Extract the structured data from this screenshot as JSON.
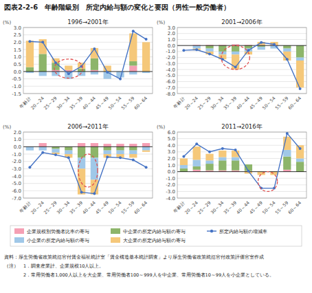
{
  "title": "図表2-2-6　年齢階級別　所定内給与額の変化と要因（男性一般労働者）",
  "footnotes": [
    "資料：厚生労働省政策統括官付賃金福祉統計室「賃金構造基本統計調査」より厚生労働省政策統括官付政策評価官室作成",
    "（注）　1．調査産業計、企業規模10人以上。",
    "　　　　2．常用労働者1,000人以上を大企業、常用労働者100～999人を中企業、常用労働者10～99人を小企業としている。"
  ],
  "chart_data": [
    {
      "type": "bar",
      "stacked": true,
      "grid": true,
      "title": "1996→2001年",
      "ylabel": "(%)",
      "categories": [
        "年齢計",
        "20～24",
        "25～29",
        "30～34",
        "35～39",
        "40～44",
        "45～49",
        "50～54",
        "55～59",
        "60～64"
      ],
      "ylim": [
        -1.5,
        3.0
      ],
      "yticks": [
        -1.5,
        {
          "value": -1.0,
          "label": "-1.0"
        },
        -0.5,
        {
          "value": 0.0,
          "label": "0.0"
        },
        0.5,
        {
          "value": 1.0,
          "label": "1.0"
        },
        1.5,
        {
          "value": 2.0,
          "label": "2.0"
        },
        2.5,
        {
          "value": 3.0,
          "label": "3.0"
        }
      ],
      "series": [
        {
          "name": "企業規模別労働者比率の寄与",
          "type": "bar",
          "color": "#f5a0b4",
          "values": [
            0.0,
            0.0,
            0.1,
            0.1,
            0.0,
            0.1,
            0.0,
            0.0,
            0.4,
            0.0
          ]
        },
        {
          "name": "中企業の所定内給与額の寄与",
          "type": "bar",
          "color": "#8db56a",
          "values": [
            0.3,
            1.2,
            0.5,
            0.0,
            0.2,
            0.8,
            0.0,
            0.0,
            0.3,
            0.0
          ]
        },
        {
          "name": "所定内給与額の増減率",
          "type": "line",
          "marker": "circle",
          "color": "#4472c4",
          "values": [
            2.05,
            2.0,
            0.6,
            -0.15,
            0.35,
            1.55,
            -0.05,
            -0.5,
            2.75,
            2.2
          ]
        },
        {
          "name": "小企業の所定内給与額の寄与",
          "type": "bar",
          "color": "#a0c8e8",
          "values": [
            -0.1,
            -0.3,
            -0.3,
            -0.5,
            -0.3,
            -0.2,
            -0.5,
            -0.4,
            -0.2,
            -0.1
          ]
        },
        {
          "name": "大企業の所定内給与額の寄与",
          "type": "bar",
          "color": "#f5c87a",
          "values": [
            1.8,
            1.0,
            0.3,
            0.3,
            0.4,
            0.7,
            0.4,
            0.0,
            1.9,
            2.0
          ]
        }
      ],
      "annotations": [
        {
          "type": "ellipse",
          "line_style": "dashed",
          "color": "#e05050",
          "x": 3.0,
          "y": -0.45,
          "width": 2.2,
          "height": 1.3
        }
      ]
    },
    {
      "type": "bar",
      "stacked": true,
      "grid": true,
      "title": "2001→2006年",
      "ylabel": "(%)",
      "categories": [
        "年齢計",
        "20～24",
        "25～29",
        "30～34",
        "35～39",
        "40～44",
        "45～49",
        "50～54",
        "55～59",
        "60～64"
      ],
      "ylim": [
        -8.0,
        3.0
      ],
      "yticks": [
        {
          "value": -8.0,
          "label": "-8.0"
        },
        {
          "value": -7.0,
          "label": "-7.0"
        },
        {
          "value": -6.0,
          "label": "-6.0"
        },
        {
          "value": -5.0,
          "label": "-5.0"
        },
        {
          "value": -4.0,
          "label": "-4.0"
        },
        {
          "value": -3.0,
          "label": "-3.0"
        },
        {
          "value": -2.0,
          "label": "-2.0"
        },
        {
          "value": -1.0,
          "label": "-1.0"
        },
        {
          "value": 0.0,
          "label": "0.0"
        },
        {
          "value": 1.0,
          "label": "1.0"
        },
        {
          "value": 2.0,
          "label": "2.0"
        },
        {
          "value": 3.0,
          "label": "3.0"
        }
      ],
      "series": [
        {
          "name": "企業規模別労働者比率の寄与",
          "type": "bar",
          "color": "#f5a0b4",
          "values": [
            0.0,
            0.1,
            0.1,
            0.1,
            0.2,
            0.1,
            0.1,
            0.1,
            0.0,
            0.0
          ]
        },
        {
          "name": "中企業の所定内給与額の寄与",
          "type": "bar",
          "color": "#8db56a",
          "values": [
            0.0,
            0.0,
            -0.5,
            -1.0,
            -1.0,
            -0.5,
            -0.2,
            0.0,
            -0.5,
            -2.0
          ]
        },
        {
          "name": "所定内給与額の増減率",
          "type": "line",
          "marker": "circle",
          "color": "#4472c4",
          "values": [
            -0.8,
            -0.7,
            -1.4,
            -2.3,
            -3.6,
            -0.8,
            0.5,
            0.2,
            -2.3,
            -7.2
          ]
        },
        {
          "name": "小企業の所定内給与額の寄与",
          "type": "bar",
          "color": "#a0c8e8",
          "values": [
            0.0,
            -0.5,
            -0.5,
            -0.5,
            -0.5,
            -0.5,
            -0.5,
            -0.5,
            -0.5,
            -0.5
          ]
        },
        {
          "name": "大企業の所定内給与額の寄与",
          "type": "bar",
          "color": "#f5c87a",
          "values": [
            0.0,
            -0.3,
            -0.5,
            -0.8,
            -2.5,
            -0.5,
            0.5,
            0.5,
            -1.5,
            -4.5
          ]
        }
      ],
      "annotations": [
        {
          "type": "ellipse",
          "line_style": "dashed",
          "color": "#e05050",
          "x": 4.0,
          "y": -4.0,
          "width": 2.2,
          "height": 4.0
        }
      ]
    },
    {
      "type": "bar",
      "stacked": true,
      "grid": true,
      "title": "2006→2011年",
      "ylabel": "(%)",
      "categories": [
        "年齢計",
        "20～24",
        "25～29",
        "30～34",
        "35～39",
        "40～44",
        "45～49",
        "50～54",
        "55～59",
        "60～64"
      ],
      "ylim": [
        -7.0,
        2.0
      ],
      "yticks": [
        {
          "value": -7.0,
          "label": "-7.0"
        },
        {
          "value": -6.0,
          "label": "-6.0"
        },
        {
          "value": -5.0,
          "label": "-5.0"
        },
        {
          "value": -4.0,
          "label": "-4.0"
        },
        {
          "value": -3.0,
          "label": "-3.0"
        },
        {
          "value": -2.0,
          "label": "-2.0"
        },
        {
          "value": -1.0,
          "label": "-1.0"
        },
        {
          "value": 0.0,
          "label": "0.0"
        },
        {
          "value": 1.0,
          "label": "1.0"
        },
        {
          "value": 2.0,
          "label": "2.0"
        }
      ],
      "series": [
        {
          "name": "企業規模別労働者比率の寄与",
          "type": "bar",
          "color": "#f5a0b4",
          "values": [
            0.0,
            0.5,
            0.0,
            0.0,
            0.5,
            0.5,
            0.4,
            0.4,
            0.4,
            0.5
          ]
        },
        {
          "name": "中企業の所定内給与額の寄与",
          "type": "bar",
          "color": "#8db56a",
          "values": [
            0.0,
            0.0,
            -0.3,
            -0.5,
            -1.5,
            -1.5,
            -0.5,
            -0.5,
            -0.5,
            0.0
          ]
        },
        {
          "name": "所定内給与額の増減率",
          "type": "line",
          "marker": "circle",
          "color": "#4472c4",
          "values": [
            -2.8,
            -0.8,
            -1.1,
            -1.5,
            -6.2,
            -6.4,
            -1.4,
            -1.5,
            -1.8,
            -2.8
          ]
        },
        {
          "name": "小企業の所定内給与額の寄与",
          "type": "bar",
          "color": "#a0c8e8",
          "values": [
            -0.5,
            -0.5,
            -0.5,
            -0.5,
            -1.5,
            -3.0,
            -0.5,
            -0.5,
            -0.5,
            -0.5
          ]
        },
        {
          "name": "大企業の所定内給与額の寄与",
          "type": "bar",
          "color": "#f5c87a",
          "values": [
            0.0,
            0.0,
            -0.2,
            -0.5,
            -3.5,
            -2.0,
            -0.5,
            -0.5,
            -0.5,
            -0.2
          ]
        }
      ],
      "annotations": [
        {
          "type": "ellipse",
          "line_style": "dashed",
          "color": "#e05050",
          "x": 4.5,
          "y": -5.5,
          "width": 1.5,
          "height": 4.5
        }
      ]
    },
    {
      "type": "bar",
      "stacked": true,
      "grid": true,
      "title": "2011→2016年",
      "ylabel": "(%)",
      "categories": [
        "年齢計",
        "20～24",
        "25～29",
        "30～34",
        "35～39",
        "40～44",
        "45～49",
        "50～54",
        "55～59",
        "60～64"
      ],
      "ylim": [
        -4.0,
        6.0
      ],
      "yticks": [
        {
          "value": -4.0,
          "label": "-4.0"
        },
        {
          "value": -3.0,
          "label": "-3.0"
        },
        {
          "value": -2.0,
          "label": "-2.0"
        },
        {
          "value": -1.0,
          "label": "-1.0"
        },
        {
          "value": 0.0,
          "label": "0.0"
        },
        {
          "value": 1.0,
          "label": "1.0"
        },
        {
          "value": 2.0,
          "label": "2.0"
        },
        {
          "value": 3.0,
          "label": "3.0"
        },
        {
          "value": 4.0,
          "label": "4.0"
        },
        {
          "value": 5.0,
          "label": "5.0"
        },
        {
          "value": 6.0,
          "label": "6.0"
        }
      ],
      "series": [
        {
          "name": "企業規模別労働者比率の寄与",
          "type": "bar",
          "color": "#f5a0b4",
          "values": [
            0.0,
            0.3,
            0.2,
            0.2,
            0.2,
            0.1,
            0.0,
            0.0,
            0.3,
            0.0
          ]
        },
        {
          "name": "中企業の所定内給与額の寄与",
          "type": "bar",
          "color": "#8db56a",
          "values": [
            0.5,
            0.5,
            1.0,
            1.5,
            1.5,
            1.0,
            0.0,
            0.0,
            2.0,
            1.5
          ]
        },
        {
          "name": "所定内給与額の増減率",
          "type": "line",
          "marker": "circle",
          "color": "#4472c4",
          "values": [
            2.3,
            4.2,
            3.0,
            3.5,
            3.3,
            0.1,
            -2.5,
            -2.5,
            5.8,
            3.5
          ]
        },
        {
          "name": "小企業の所定内給与額の寄与",
          "type": "bar",
          "color": "#a0c8e8",
          "values": [
            0.5,
            1.0,
            0.5,
            0.5,
            0.5,
            0.0,
            0.0,
            0.0,
            1.0,
            0.5
          ]
        },
        {
          "name": "大企業の所定内給与額の寄与",
          "type": "bar",
          "color": "#f5c87a",
          "values": [
            1.0,
            2.0,
            1.0,
            1.0,
            1.0,
            -0.3,
            -0.5,
            -0.5,
            2.0,
            2.0
          ]
        }
      ],
      "annotations": [
        {
          "type": "ellipse",
          "line_style": "dashed",
          "color": "#e05050",
          "x": 6.5,
          "y": -3.0,
          "width": 1.5,
          "height": 3.0
        }
      ]
    }
  ]
}
